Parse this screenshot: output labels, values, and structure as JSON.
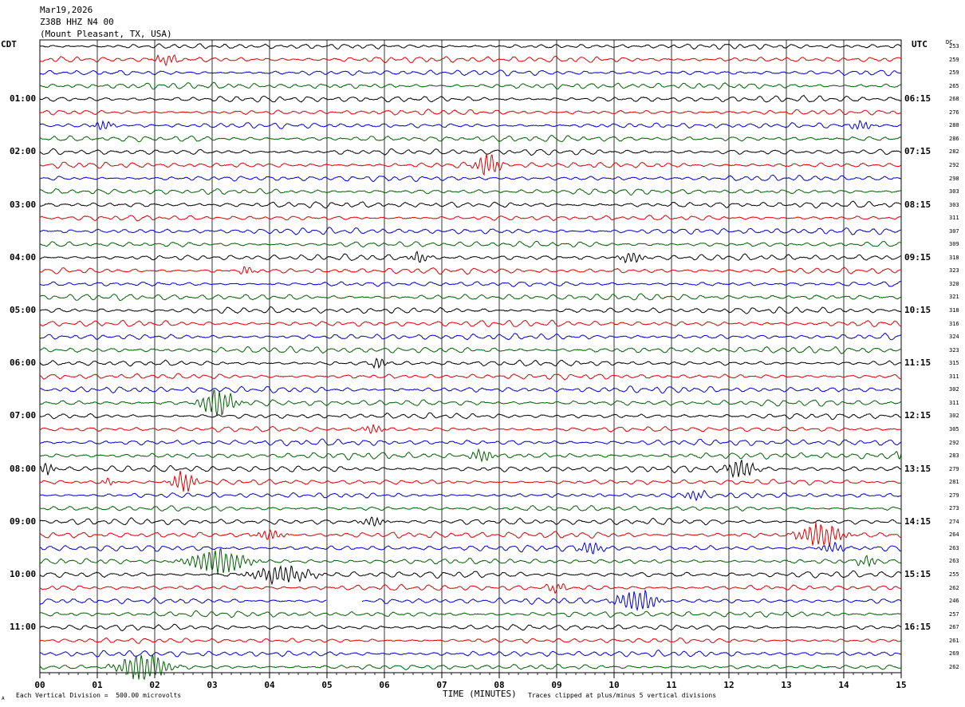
{
  "header": {
    "date": "Mar19,2026",
    "station": "Z38B HHZ N4 00",
    "location": "(Mount Pleasant, TX, USA)"
  },
  "labels": {
    "left_tz": "CDT",
    "right_tz": "UTC",
    "dc": "DC",
    "xlabel": "TIME (MINUTES)",
    "note_left": "Each Vertical Division =  500.00 microvolts",
    "note_right": "Traces clipped at plus/minus 5 vertical divisions",
    "corner": "A"
  },
  "colors": {
    "trace_cycle": [
      "#000000",
      "#e00000",
      "#0000d0",
      "#006000"
    ],
    "grid": "#000000",
    "background": "#ffffff"
  },
  "chart_data": {
    "type": "line",
    "xlim": [
      0,
      15
    ],
    "x_ticks": [
      "00",
      "01",
      "02",
      "03",
      "04",
      "05",
      "06",
      "07",
      "08",
      "09",
      "10",
      "11",
      "12",
      "13",
      "14",
      "15"
    ],
    "left_time_labels": [
      "01:00",
      "02:00",
      "03:00",
      "04:00",
      "05:00",
      "06:00",
      "07:00",
      "08:00",
      "09:00",
      "10:00",
      "11:00"
    ],
    "right_time_labels": [
      "06:15",
      "07:15",
      "08:15",
      "09:15",
      "10:15",
      "11:15",
      "12:15",
      "13:15",
      "14:15",
      "15:15",
      "16:15"
    ],
    "dc_offsets": [
      253,
      259,
      259,
      265,
      268,
      276,
      280,
      286,
      282,
      292,
      298,
      303,
      303,
      311,
      307,
      309,
      318,
      323,
      320,
      321,
      318,
      316,
      324,
      323,
      315,
      311,
      302,
      311,
      302,
      305,
      292,
      283,
      279,
      281,
      279,
      273,
      274,
      264,
      263,
      263,
      255,
      262,
      246,
      257,
      267,
      261,
      269,
      262
    ],
    "events": [
      {
        "trace": 1,
        "minute": 2.2,
        "amp": 1.2,
        "dur": 0.5
      },
      {
        "trace": 6,
        "minute": 1.1,
        "amp": 1.2,
        "dur": 0.4
      },
      {
        "trace": 6,
        "minute": 14.3,
        "amp": 1.3,
        "dur": 0.4
      },
      {
        "trace": 9,
        "minute": 7.8,
        "amp": 2.8,
        "dur": 0.5
      },
      {
        "trace": 16,
        "minute": 6.6,
        "amp": 1.3,
        "dur": 0.4
      },
      {
        "trace": 16,
        "minute": 10.3,
        "amp": 1.3,
        "dur": 0.5
      },
      {
        "trace": 17,
        "minute": 3.6,
        "amp": 1.0,
        "dur": 0.3
      },
      {
        "trace": 24,
        "minute": 5.9,
        "amp": 1.5,
        "dur": 0.3
      },
      {
        "trace": 27,
        "minute": 3.1,
        "amp": 3.5,
        "dur": 0.7
      },
      {
        "trace": 29,
        "minute": 5.8,
        "amp": 1.2,
        "dur": 0.4
      },
      {
        "trace": 31,
        "minute": 7.7,
        "amp": 1.4,
        "dur": 0.5
      },
      {
        "trace": 31,
        "minute": 15.0,
        "amp": 1.5,
        "dur": 0.2
      },
      {
        "trace": 32,
        "minute": 0.1,
        "amp": 1.5,
        "dur": 0.4
      },
      {
        "trace": 32,
        "minute": 12.2,
        "amp": 2.3,
        "dur": 0.6
      },
      {
        "trace": 33,
        "minute": 2.5,
        "amp": 2.5,
        "dur": 0.5
      },
      {
        "trace": 33,
        "minute": 1.2,
        "amp": 0.9,
        "dur": 0.3
      },
      {
        "trace": 34,
        "minute": 11.4,
        "amp": 1.2,
        "dur": 0.4
      },
      {
        "trace": 36,
        "minute": 5.8,
        "amp": 1.2,
        "dur": 0.5
      },
      {
        "trace": 37,
        "minute": 4.0,
        "amp": 1.2,
        "dur": 0.6
      },
      {
        "trace": 37,
        "minute": 13.6,
        "amp": 3.0,
        "dur": 0.9
      },
      {
        "trace": 38,
        "minute": 9.6,
        "amp": 1.5,
        "dur": 0.5
      },
      {
        "trace": 38,
        "minute": 13.8,
        "amp": 1.3,
        "dur": 0.5
      },
      {
        "trace": 39,
        "minute": 3.1,
        "amp": 3.0,
        "dur": 1.2
      },
      {
        "trace": 39,
        "minute": 14.4,
        "amp": 1.4,
        "dur": 0.4
      },
      {
        "trace": 40,
        "minute": 4.2,
        "amp": 2.2,
        "dur": 1.2
      },
      {
        "trace": 41,
        "minute": 9.0,
        "amp": 1.2,
        "dur": 0.4
      },
      {
        "trace": 42,
        "minute": 10.4,
        "amp": 3.0,
        "dur": 0.8
      },
      {
        "trace": 47,
        "minute": 1.8,
        "amp": 3.5,
        "dur": 1.0
      }
    ],
    "gaps": [
      {
        "trace": 42,
        "start": 5.0,
        "end": 5.6
      }
    ]
  }
}
